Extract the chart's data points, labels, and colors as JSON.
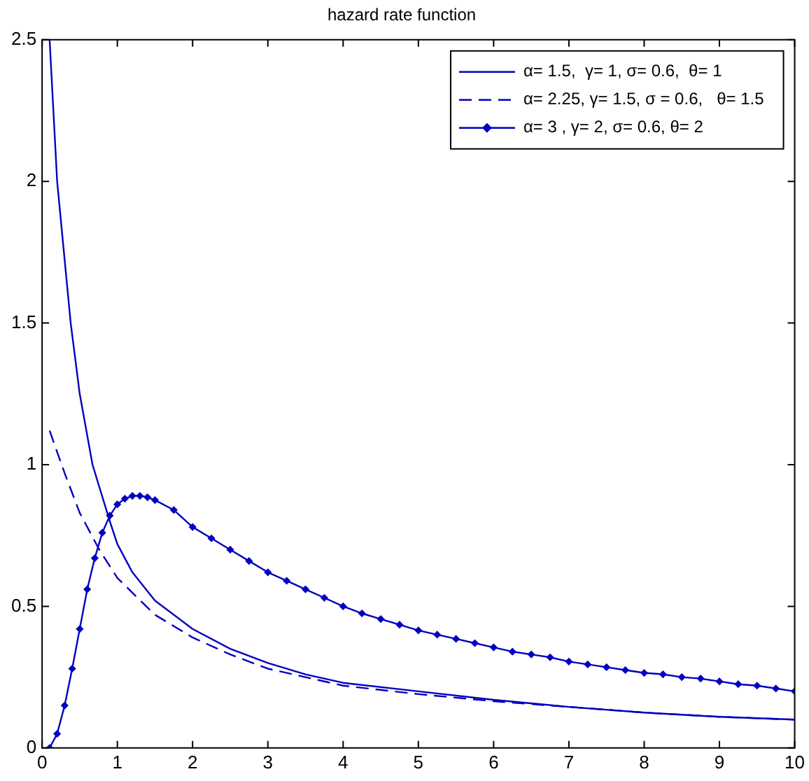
{
  "chart_data": {
    "type": "line",
    "title": "hazard rate function",
    "xlim": [
      0,
      10
    ],
    "ylim": [
      0,
      2.5
    ],
    "xticks": [
      0,
      1,
      2,
      3,
      4,
      5,
      6,
      7,
      8,
      9,
      10
    ],
    "yticks": [
      0,
      0.5,
      1,
      1.5,
      2,
      2.5
    ],
    "grid": false,
    "legend": "top right",
    "series": [
      {
        "name": "α= 1.5,  γ= 1, σ= 0.6,  θ= 1",
        "color": "#0000c0",
        "line_style": "solid",
        "marker": "none",
        "x": [
          0.1,
          0.2,
          0.38,
          0.5,
          0.67,
          0.9,
          1,
          1.2,
          1.5,
          2,
          2.5,
          3,
          3.5,
          4,
          5,
          6,
          7,
          8,
          9,
          10
        ],
        "values": [
          2.5,
          2.0,
          1.5,
          1.25,
          1.0,
          0.8,
          0.72,
          0.62,
          0.52,
          0.42,
          0.35,
          0.3,
          0.26,
          0.23,
          0.2,
          0.17,
          0.145,
          0.125,
          0.11,
          0.1
        ]
      },
      {
        "name": "α= 2.25, γ= 1.5, σ = 0.6,   θ= 1.5",
        "color": "#0000c0",
        "line_style": "dashed",
        "marker": "none",
        "x": [
          0.1,
          0.3,
          0.5,
          0.76,
          1,
          1.5,
          2,
          2.5,
          3,
          3.5,
          4,
          5,
          6,
          7,
          8,
          9,
          10
        ],
        "values": [
          1.12,
          0.97,
          0.83,
          0.7,
          0.6,
          0.47,
          0.39,
          0.33,
          0.28,
          0.25,
          0.22,
          0.19,
          0.165,
          0.145,
          0.125,
          0.11,
          0.1
        ]
      },
      {
        "name": "α= 3 , γ= 2, σ= 0.6, θ= 2",
        "color": "#0000c0",
        "line_style": "solid",
        "marker": "diamond",
        "x": [
          0.1,
          0.2,
          0.3,
          0.4,
          0.5,
          0.6,
          0.7,
          0.8,
          0.9,
          1,
          1.1,
          1.2,
          1.3,
          1.4,
          1.5,
          1.75,
          2,
          2.25,
          2.5,
          2.75,
          3,
          3.25,
          3.5,
          3.75,
          4,
          4.25,
          4.5,
          4.75,
          5,
          5.25,
          5.5,
          5.75,
          6,
          6.25,
          6.5,
          6.75,
          7,
          7.25,
          7.5,
          7.75,
          8,
          8.25,
          8.5,
          8.75,
          9,
          9.25,
          9.5,
          9.75,
          10
        ],
        "values": [
          0,
          0.05,
          0.15,
          0.28,
          0.42,
          0.56,
          0.67,
          0.76,
          0.82,
          0.86,
          0.88,
          0.89,
          0.89,
          0.885,
          0.875,
          0.84,
          0.78,
          0.74,
          0.7,
          0.66,
          0.62,
          0.59,
          0.56,
          0.53,
          0.5,
          0.475,
          0.455,
          0.435,
          0.415,
          0.4,
          0.385,
          0.37,
          0.355,
          0.34,
          0.33,
          0.32,
          0.305,
          0.295,
          0.285,
          0.275,
          0.265,
          0.26,
          0.25,
          0.245,
          0.235,
          0.225,
          0.22,
          0.21,
          0.2
        ]
      }
    ]
  }
}
